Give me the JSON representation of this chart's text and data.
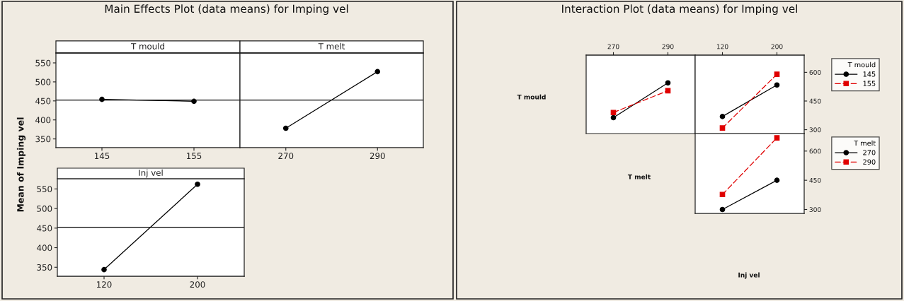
{
  "chart_data": [
    {
      "type": "line",
      "title": "Main Effects Plot (data means) for Imping vel",
      "subtitle": "T mould",
      "ylabel": "Mean of Imping vel",
      "x": [
        145,
        155
      ],
      "xlim": [
        140,
        160
      ],
      "xticks": [
        145,
        155
      ],
      "ylim": [
        327,
        576
      ],
      "yticks": [
        350,
        400,
        450,
        500,
        550
      ],
      "marker": "circle",
      "line_style": "solid",
      "ref_lines": [
        {
          "axis": "y",
          "value": 452,
          "color": "#000000"
        }
      ],
      "series": [
        {
          "color": "#000000",
          "values": [
            454,
            449
          ]
        }
      ]
    },
    {
      "type": "line",
      "subtitle": "T melt",
      "x": [
        270,
        290
      ],
      "xlim": [
        260,
        300
      ],
      "xticks": [
        270,
        290
      ],
      "ylim": [
        327,
        576
      ],
      "yticks": [
        350,
        400,
        450,
        500,
        550
      ],
      "tick_labels": "x",
      "marker": "circle",
      "line_style": "solid",
      "ref_lines": [
        {
          "axis": "y",
          "value": 452,
          "color": "#000000"
        }
      ],
      "series": [
        {
          "color": "#000000",
          "values": [
            378,
            527
          ]
        }
      ]
    },
    {
      "type": "line",
      "subtitle": "Inj vel",
      "x": [
        120,
        200
      ],
      "xlim": [
        80,
        240
      ],
      "xticks": [
        120,
        200
      ],
      "ylim": [
        327,
        576
      ],
      "yticks": [
        350,
        400,
        450,
        500,
        550
      ],
      "marker": "circle",
      "line_style": "solid",
      "ref_lines": [
        {
          "axis": "y",
          "value": 452,
          "color": "#000000"
        }
      ],
      "series": [
        {
          "color": "#000000",
          "values": [
            344,
            562
          ]
        }
      ]
    },
    {
      "type": "line",
      "title": "Interaction Plot (data means) for Imping vel",
      "ylabel": "T mould",
      "x": [
        270,
        290
      ],
      "xlim": [
        260,
        300
      ],
      "xticks": [
        270,
        290
      ],
      "ylim": [
        280,
        690
      ],
      "yticks": [
        300,
        450,
        600
      ],
      "tick_labels": "x",
      "series": [
        {
          "color": "#000000",
          "marker": "circle",
          "line_style": "solid",
          "values": [
            363,
            545
          ]
        },
        {
          "color": "#e00000",
          "marker": "square",
          "line_style": "dashed",
          "values": [
            390,
            504
          ]
        }
      ]
    },
    {
      "type": "line",
      "legend_title": "T mould",
      "legend": "right",
      "x": [
        120,
        200
      ],
      "xlim": [
        80,
        240
      ],
      "xticks": [
        120,
        200
      ],
      "ylim": [
        280,
        690
      ],
      "yticks": [
        300,
        450,
        600
      ],
      "series": [
        {
          "name": "145",
          "color": "#000000",
          "marker": "circle",
          "line_style": "solid",
          "values": [
            369,
            534
          ]
        },
        {
          "name": "155",
          "color": "#e00000",
          "marker": "square",
          "line_style": "dashed",
          "values": [
            309,
            590
          ]
        }
      ]
    },
    {
      "type": "line",
      "ylabel": "T melt",
      "xlabel": "Inj vel",
      "legend_title": "T melt",
      "legend": "right",
      "x": [
        120,
        200
      ],
      "xlim": [
        80,
        240
      ],
      "xticks": [
        120,
        200
      ],
      "ylim": [
        280,
        690
      ],
      "yticks": [
        300,
        450,
        600
      ],
      "tick_labels": "y",
      "series": [
        {
          "name": "270",
          "color": "#000000",
          "marker": "circle",
          "line_style": "solid",
          "values": [
            300,
            450
          ]
        },
        {
          "name": "290",
          "color": "#e00000",
          "marker": "square",
          "line_style": "dashed",
          "values": [
            377,
            668
          ]
        }
      ]
    }
  ]
}
